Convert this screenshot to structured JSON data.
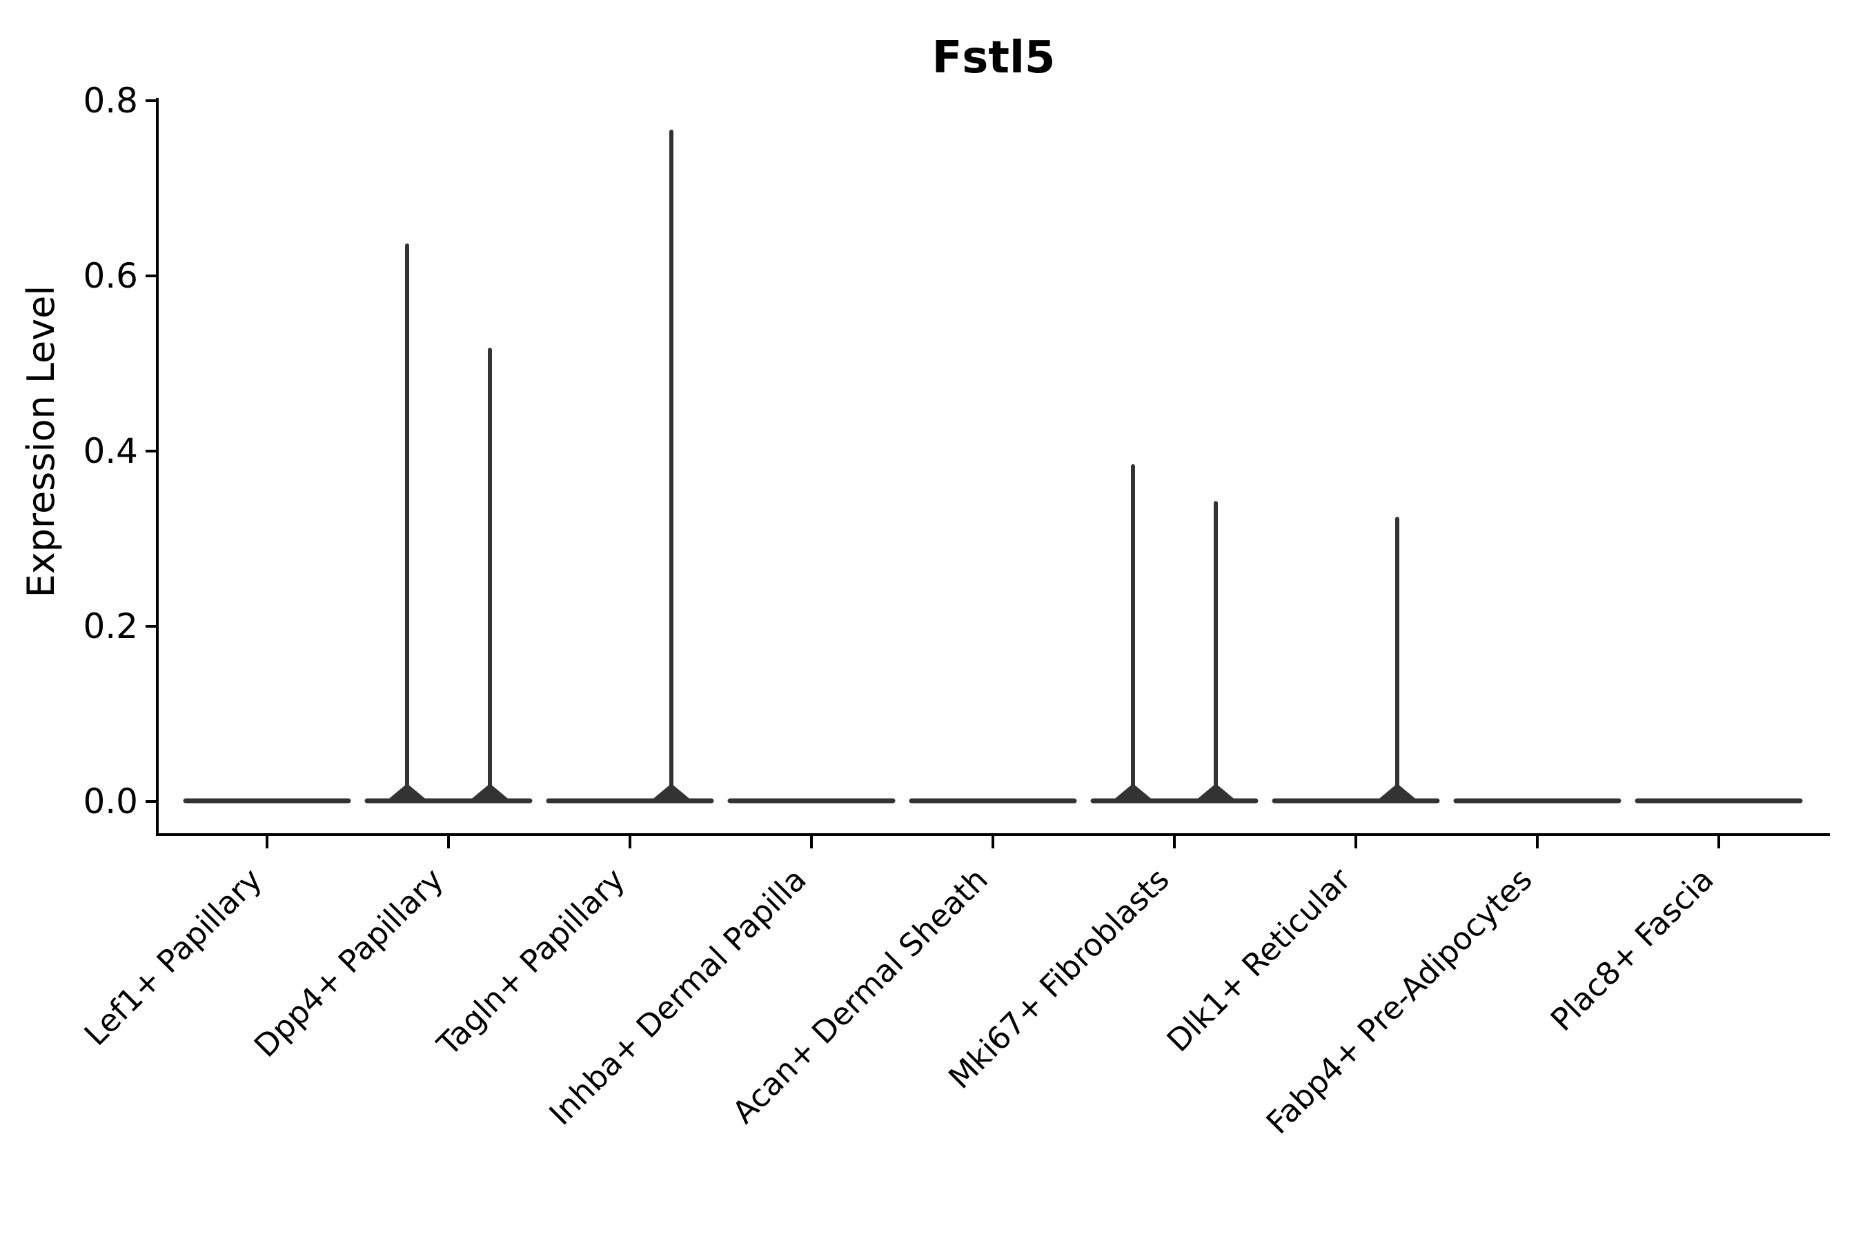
{
  "figure": {
    "background": "#ffffff"
  },
  "chart_data": {
    "type": "violin",
    "title": "Fstl5",
    "xlabel": "",
    "ylabel": "Expression Level",
    "ylim": [
      0,
      0.8
    ],
    "ytick_values": [
      0,
      0.2,
      0.4,
      0.6,
      0.8
    ],
    "ytick_labels": [
      "0.0",
      "0.2",
      "0.4",
      "0.6",
      "0.8"
    ],
    "categories": [
      "Lef1+ Papillary",
      "Dpp4+ Papillary",
      "Tagln+ Papillary",
      "Inhba+ Dermal Papilla",
      "Acan+ Dermal Sheath",
      "Mki67+ Fibroblasts",
      "Dlk1+ Reticular",
      "Fabp4+ Pre-Adipocytes",
      "Plac8+ Fascia"
    ],
    "violins_per_category": 2,
    "series": [
      {
        "name": "left_violin",
        "max_values": [
          0,
          0.637,
          0,
          0,
          0,
          0.385,
          0,
          0,
          0
        ]
      },
      {
        "name": "right_violin",
        "max_values": [
          0,
          0.518,
          0.767,
          0,
          0,
          0.343,
          0.325,
          0,
          0
        ]
      }
    ],
    "baseline_value": 0.0,
    "legend": "none",
    "grid": "off",
    "colors": {
      "violin": "#333333",
      "axis": "#000000",
      "text": "#000000"
    }
  }
}
